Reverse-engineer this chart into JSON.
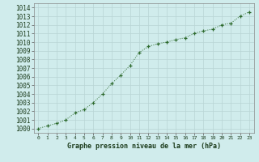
{
  "x": [
    0,
    1,
    2,
    3,
    4,
    5,
    6,
    7,
    8,
    9,
    10,
    11,
    12,
    13,
    14,
    15,
    16,
    17,
    18,
    19,
    20,
    21,
    22,
    23
  ],
  "y": [
    1000.0,
    1000.3,
    1000.6,
    1001.0,
    1001.8,
    1002.2,
    1003.0,
    1004.0,
    1005.2,
    1006.2,
    1007.3,
    1008.8,
    1009.5,
    1009.8,
    1010.0,
    1010.3,
    1010.5,
    1011.0,
    1011.3,
    1011.5,
    1012.0,
    1012.2,
    1013.0,
    1013.5
  ],
  "xlabel": "Graphe pression niveau de la mer (hPa)",
  "ylim_min": 999.5,
  "ylim_max": 1014.5,
  "xlim_min": -0.5,
  "xlim_max": 23.5,
  "yticks": [
    1000,
    1001,
    1002,
    1003,
    1004,
    1005,
    1006,
    1007,
    1008,
    1009,
    1010,
    1011,
    1012,
    1013,
    1014
  ],
  "xticks": [
    0,
    1,
    2,
    3,
    4,
    5,
    6,
    7,
    8,
    9,
    10,
    11,
    12,
    13,
    14,
    15,
    16,
    17,
    18,
    19,
    20,
    21,
    22,
    23
  ],
  "line_color": "#2d6a2d",
  "marker": "+",
  "bg_color": "#d0ecec",
  "grid_major_color": "#b8d4d4",
  "grid_minor_color": "#c8e0e0",
  "tick_label_color": "#1a3a1a",
  "xlabel_color": "#1a3a1a",
  "ytick_fontsize": 5.5,
  "xtick_fontsize": 4.5,
  "xlabel_fontsize": 6.0
}
